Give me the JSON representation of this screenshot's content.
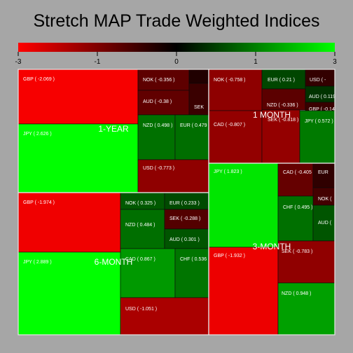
{
  "chart_data": {
    "type": "treemap",
    "title": "Stretch MAP Trade Weighted Indices",
    "color_scale": {
      "min": -3,
      "max": 3,
      "tick_labels": [
        "-3",
        "-1",
        "0",
        "1",
        "3"
      ],
      "tick_values": [
        -3,
        -1,
        0,
        1,
        3
      ],
      "low_color": "#ff0000",
      "mid_color": "#000000",
      "high_color": "#00ff00"
    },
    "groups": [
      {
        "name": "1-YEAR",
        "items": [
          {
            "label": "GBP ( -2.069 )",
            "value": -2.069
          },
          {
            "label": "JPY ( 2.626 )",
            "value": 2.626
          },
          {
            "label": "NOK ( -0.356 )",
            "value": -0.356
          },
          {
            "label": "",
            "value": -0.05
          },
          {
            "label": "AUD ( -0.38 )",
            "value": -0.38
          },
          {
            "label": "SEK",
            "value": -0.15
          },
          {
            "label": "NZD ( 0.498 )",
            "value": 0.498
          },
          {
            "label": "EUR ( 0.479",
            "value": 0.479
          },
          {
            "label": "USD ( -0.773 )",
            "value": -0.773
          }
        ]
      },
      {
        "name": "1 MONTH",
        "items": [
          {
            "label": "NOK ( -0.758 )",
            "value": -0.758
          },
          {
            "label": "CAD ( -0.807 )",
            "value": -0.807
          },
          {
            "label": "EUR ( 0.21 )",
            "value": 0.21
          },
          {
            "label": "USD ( -",
            "value": -0.12
          },
          {
            "label": "NZD ( -0.336 )",
            "value": -0.336
          },
          {
            "label": "AUD ( 0.119",
            "value": 0.119
          },
          {
            "label": "GBP ( -0.14",
            "value": -0.14
          },
          {
            "label": "SEK ( -0.818 )",
            "value": -0.818
          },
          {
            "label": "JPY ( 0.572 )",
            "value": 0.572
          }
        ]
      },
      {
        "name": "6-MONTH",
        "items": [
          {
            "label": "GBP ( -1.974 )",
            "value": -1.974
          },
          {
            "label": "JPY ( 2.889 )",
            "value": 2.889
          },
          {
            "label": "NOK ( 0.325 )",
            "value": 0.325
          },
          {
            "label": "EUR ( 0.233 )",
            "value": 0.233
          },
          {
            "label": "NZD ( 0.484 )",
            "value": 0.484
          },
          {
            "label": "SEK ( -0.288 )",
            "value": -0.288
          },
          {
            "label": "AUD ( 0.301 )",
            "value": 0.301
          },
          {
            "label": "CAD ( 0.867 )",
            "value": 0.867
          },
          {
            "label": "CHF ( 0.536",
            "value": 0.536
          },
          {
            "label": "USD ( -1.051 )",
            "value": -1.051
          }
        ]
      },
      {
        "name": "3-MONTH",
        "items": [
          {
            "label": "JPY ( 1.823 )",
            "value": 1.823
          },
          {
            "label": "GBP ( -1.932 )",
            "value": -1.932
          },
          {
            "label": "CAD ( -0.405",
            "value": -0.405
          },
          {
            "label": "EUR",
            "value": -0.1
          },
          {
            "label": "NOK (",
            "value": -0.2
          },
          {
            "label": "CHF ( 0.495 )",
            "value": 0.495
          },
          {
            "label": "AUD (",
            "value": 0.3
          },
          {
            "label": "SEK ( -0.783 )",
            "value": -0.783
          },
          {
            "label": "NZD ( 0.948 )",
            "value": 0.948
          }
        ]
      }
    ]
  }
}
